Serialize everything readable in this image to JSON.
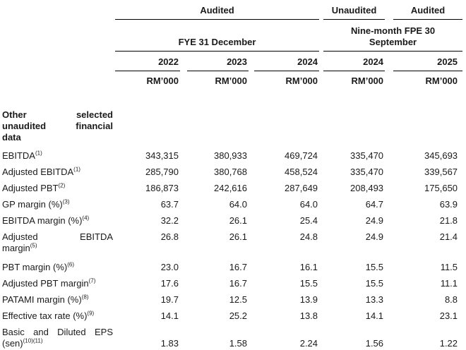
{
  "table": {
    "col_groups": {
      "audited_fye": "Audited",
      "unaudited_nine_month": "Unaudited",
      "audited_nine_month": "Audited",
      "fye_label": "FYE 31 December",
      "nine_month_line1": "Nine-month FPE 30",
      "nine_month_line2": "September"
    },
    "years": [
      "2022",
      "2023",
      "2024",
      "2024",
      "2025"
    ],
    "units": [
      "RM’000",
      "RM’000",
      "RM’000",
      "RM’000",
      "RM’000"
    ],
    "rows": [
      {
        "type": "section",
        "label_lines": [
          "Other selected",
          "unaudited financial",
          "data"
        ]
      },
      {
        "label_lines": [
          "EBITDA"
        ],
        "sup": "(1)",
        "values": [
          "343,315",
          "380,933",
          "469,724",
          "335,470",
          "345,693"
        ]
      },
      {
        "label_lines": [
          "Adjusted EBITDA"
        ],
        "sup": "(1)",
        "values": [
          "285,790",
          "380,768",
          "458,524",
          "335,470",
          "339,567"
        ]
      },
      {
        "label_lines": [
          "Adjusted PBT"
        ],
        "sup": "(2)",
        "values": [
          "186,873",
          "242,616",
          "287,649",
          "208,493",
          "175,650"
        ]
      },
      {
        "label_lines": [
          "GP margin (%)"
        ],
        "sup": "(3)",
        "values": [
          "63.7",
          "64.0",
          "64.0",
          "64.7",
          "63.9"
        ]
      },
      {
        "label_lines": [
          "EBITDA margin (%)"
        ],
        "sup": "(4)",
        "values": [
          "32.2",
          "26.1",
          "25.4",
          "24.9",
          "21.8"
        ]
      },
      {
        "label_lines": [
          "Adjusted EBITDA",
          "margin"
        ],
        "sup": "(5)",
        "justify_first": true,
        "valign": "top",
        "values": [
          "26.8",
          "26.1",
          "24.8",
          "24.9",
          "21.4"
        ]
      },
      {
        "label_lines": [
          "PBT margin (%)"
        ],
        "sup": "(6)",
        "values": [
          "23.0",
          "16.7",
          "16.1",
          "15.5",
          "11.5"
        ]
      },
      {
        "label_lines": [
          "Adjusted PBT margin"
        ],
        "sup": "(7)",
        "values": [
          "17.6",
          "16.7",
          "15.5",
          "15.5",
          "11.1"
        ]
      },
      {
        "label_lines": [
          "PATAMI margin (%)"
        ],
        "sup": "(8)",
        "values": [
          "19.7",
          "12.5",
          "13.9",
          "13.3",
          "8.8"
        ]
      },
      {
        "label_lines": [
          "Effective tax rate (%)"
        ],
        "sup": "(9)",
        "values": [
          "14.1",
          "25.2",
          "13.8",
          "14.1",
          "23.1"
        ]
      },
      {
        "label_lines": [
          "Basic and Diluted EPS",
          "(sen)"
        ],
        "sup": "(10)(11)",
        "justify_first": true,
        "valign": "bottom",
        "values": [
          "1.83",
          "1.58",
          "2.24",
          "1.56",
          "1.22"
        ]
      }
    ]
  }
}
